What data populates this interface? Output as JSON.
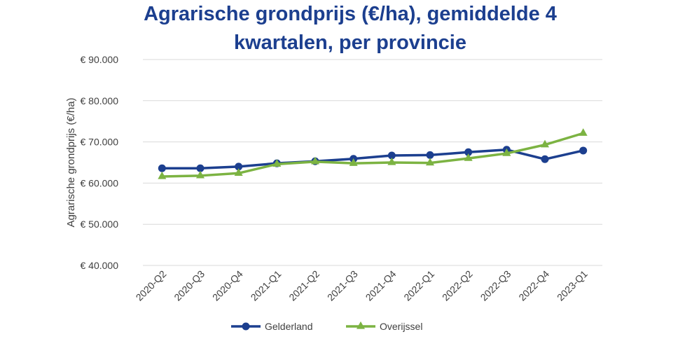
{
  "chart_data": {
    "type": "line",
    "title_lines": [
      "Agrarische grondprijs (€/ha), gemiddelde 4",
      "kwartalen, per provincie"
    ],
    "xlabel": "",
    "ylabel": "Agrarische grondprijs (€/ha)",
    "categories": [
      "2020-Q2",
      "2020-Q3",
      "2020-Q4",
      "2021-Q1",
      "2021-Q2",
      "2021-Q3",
      "2021-Q4",
      "2022-Q1",
      "2022-Q2",
      "2022-Q3",
      "2022-Q4",
      "2023-Q1"
    ],
    "ylim": [
      40000,
      90000
    ],
    "yticks": [
      40000,
      50000,
      60000,
      70000,
      80000,
      90000
    ],
    "ytick_labels": [
      "€ 40.000",
      "€ 50.000",
      "€ 60.000",
      "€ 70.000",
      "€ 80.000",
      "€ 90.000"
    ],
    "grid": true,
    "legend_position": "bottom",
    "series": [
      {
        "name": "Gelderland",
        "color": "#1c3f8f",
        "marker": "circle",
        "values": [
          63600,
          63600,
          64000,
          64800,
          65300,
          65900,
          66700,
          66800,
          67500,
          68100,
          65800,
          67900
        ]
      },
      {
        "name": "Overijssel",
        "color": "#7cb342",
        "marker": "triangle",
        "values": [
          61600,
          61800,
          62400,
          64600,
          65200,
          64800,
          65000,
          64900,
          66000,
          67200,
          69300,
          72100
        ]
      }
    ]
  }
}
